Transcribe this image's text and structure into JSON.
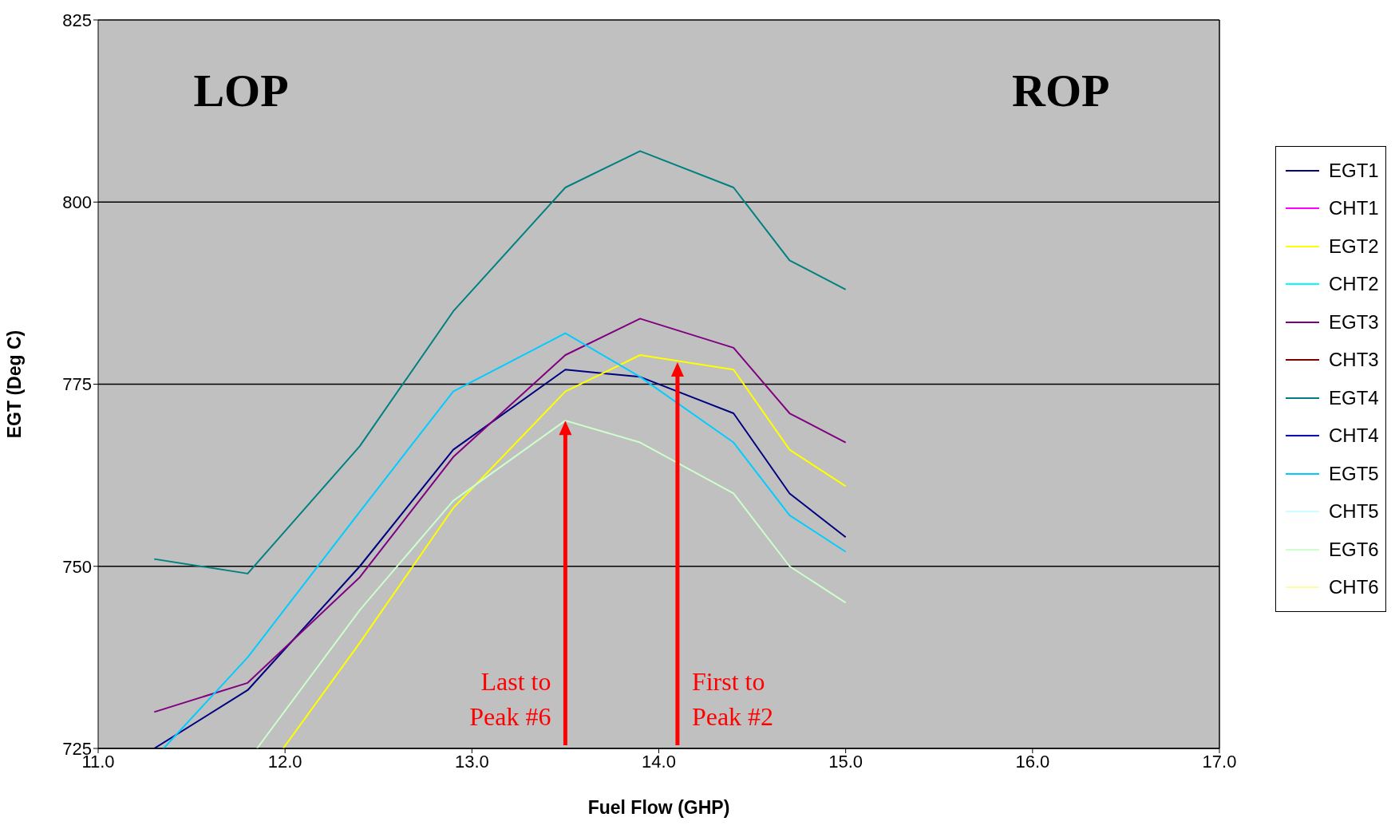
{
  "chart_data": {
    "type": "line",
    "xlabel": "Fuel Flow (GHP)",
    "ylabel": "EGT (Deg C)",
    "x": [
      11.3,
      11.8,
      12.4,
      12.9,
      13.5,
      13.9,
      14.4,
      14.7,
      15.0
    ],
    "xlim": [
      11,
      17
    ],
    "xticks": [
      {
        "value": 11,
        "label": "11.0"
      },
      {
        "value": 12,
        "label": "12.0"
      },
      {
        "value": 13,
        "label": "13.0"
      },
      {
        "value": 14,
        "label": "14.0"
      },
      {
        "value": 15,
        "label": "15.0"
      },
      {
        "value": 16,
        "label": "16.0"
      },
      {
        "value": 17,
        "label": "17.0"
      }
    ],
    "ylim": [
      725,
      825
    ],
    "yticks": [
      725,
      750,
      775,
      800,
      825
    ],
    "grid": "y",
    "legend": "right",
    "marker": "none",
    "line_style": "solid",
    "series": [
      {
        "name": "EGT1",
        "color": "#000080",
        "values": [
          725,
          733,
          750,
          766,
          777,
          776,
          771,
          760,
          754
        ]
      },
      {
        "name": "CHT1",
        "color": "#ff00ff",
        "values": [
          null,
          null,
          null,
          null,
          null,
          null,
          null,
          null,
          null
        ]
      },
      {
        "name": "EGT2",
        "color": "#ffff00",
        "x": [
          11.99,
          12.4,
          12.9,
          13.5,
          13.9,
          14.4,
          14.7,
          15.0
        ],
        "values": [
          725,
          739.5,
          758,
          774,
          779,
          777,
          766,
          761
        ]
      },
      {
        "name": "CHT2",
        "color": "#00ffff",
        "values": [
          null,
          null,
          null,
          null,
          null,
          null,
          null,
          null,
          null
        ]
      },
      {
        "name": "EGT3",
        "color": "#800080",
        "values": [
          730,
          734,
          748.5,
          765,
          779,
          784,
          780,
          771,
          767
        ]
      },
      {
        "name": "CHT3",
        "color": "#800000",
        "values": [
          null,
          null,
          null,
          null,
          null,
          null,
          null,
          null,
          null
        ]
      },
      {
        "name": "EGT4",
        "color": "#008080",
        "values": [
          751,
          749,
          766.5,
          785,
          802,
          807,
          802,
          792,
          788
        ]
      },
      {
        "name": "CHT4",
        "color": "#0000ff",
        "values": [
          null,
          null,
          null,
          null,
          null,
          null,
          null,
          null,
          null
        ]
      },
      {
        "name": "EGT5",
        "color": "#00ccff",
        "x": [
          11.35,
          11.8,
          12.4,
          12.9,
          13.5,
          13.9,
          14.4,
          14.7,
          15.0
        ],
        "values": [
          725,
          737.5,
          757.5,
          774,
          782,
          776,
          767,
          757,
          752
        ]
      },
      {
        "name": "CHT5",
        "color": "#ccffff",
        "values": [
          null,
          null,
          null,
          null,
          null,
          null,
          null,
          null,
          null
        ]
      },
      {
        "name": "EGT6",
        "color": "#ccffcc",
        "x": [
          11.85,
          12.4,
          12.9,
          13.5,
          13.9,
          14.4,
          14.7,
          15.0
        ],
        "values": [
          725,
          744,
          759,
          770,
          767,
          760,
          750,
          745
        ]
      },
      {
        "name": "CHT6",
        "color": "#ffff99",
        "values": [
          null,
          null,
          null,
          null,
          null,
          null,
          null,
          null,
          null
        ]
      }
    ],
    "annotations": [
      "LOP",
      "ROP",
      "Last to Peak #6",
      "First to Peak #2"
    ]
  }
}
